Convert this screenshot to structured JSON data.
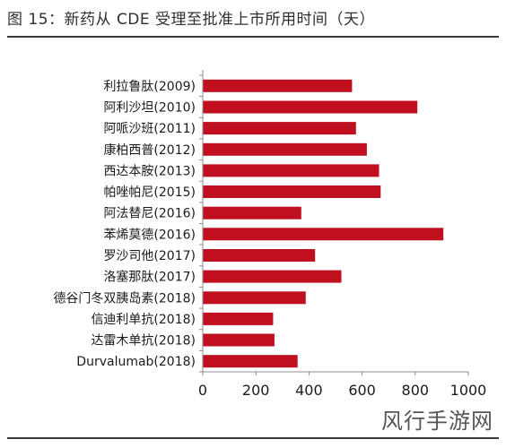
{
  "figure": {
    "title": "图 15：新药从 CDE 受理至批准上市所用时间（天）"
  },
  "watermark": "风行手游网",
  "chart_data": {
    "type": "bar",
    "orientation": "horizontal",
    "categories": [
      "利拉鲁肽(2009)",
      "阿利沙坦(2010)",
      "阿哌沙班(2011)",
      "康柏西普(2012)",
      "西达本胺(2013)",
      "帕唑帕尼(2015)",
      "阿法替尼(2016)",
      "苯烯莫德(2016)",
      "罗沙司他(2017)",
      "洛塞那肽(2017)",
      "德谷门冬双胰岛素(2018)",
      "信迪利单抗(2018)",
      "达雷木单抗(2018)",
      "Durvalumab(2018)"
    ],
    "values": [
      562,
      808,
      577,
      618,
      664,
      670,
      371,
      906,
      423,
      522,
      388,
      265,
      270,
      357
    ],
    "xlim": [
      0,
      1000
    ],
    "xticks": [
      0,
      200,
      400,
      600,
      800,
      1000
    ],
    "grid": false,
    "legend": "none",
    "bar_color": "#c00f1e"
  }
}
